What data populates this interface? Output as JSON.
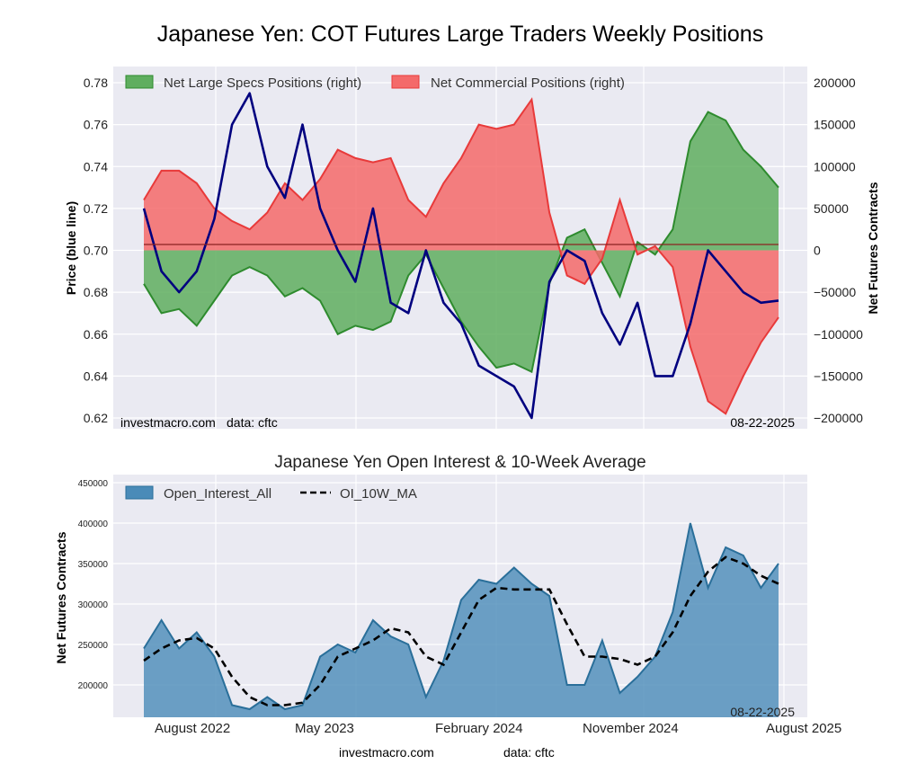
{
  "title": "Japanese Yen: COT Futures Large Traders Weekly Positions",
  "top_panel": {
    "left_ylabel": "Price (blue line)",
    "right_ylabel": "Net Futures Contracts",
    "left_ticks": [
      "0.62",
      "0.64",
      "0.66",
      "0.68",
      "0.70",
      "0.72",
      "0.74",
      "0.76",
      "0.78"
    ],
    "right_ticks": [
      "−200000",
      "−150000",
      "−100000",
      "−50000",
      "0",
      "50000",
      "100000",
      "150000",
      "200000"
    ],
    "watermark": "investmacro.com",
    "data_source": "data: cftc",
    "date_stamp": "08-22-2025"
  },
  "bottom_panel": {
    "title": "Japanese Yen Open Interest & 10-Week Average",
    "ylabel": "Net Futures Contracts",
    "y_ticks": [
      "200000",
      "250000",
      "300000",
      "350000",
      "400000",
      "450000"
    ],
    "x_ticks": [
      "August 2022",
      "May 2023",
      "February 2024",
      "November 2024",
      "August 2025"
    ],
    "date_stamp": "08-22-2025"
  },
  "footer": {
    "site": "investmacro.com",
    "source": "data: cftc"
  },
  "colors": {
    "price_line": "#00007f",
    "specs_fill": "#5fae5f",
    "specs_line": "#2e8b2e",
    "comm_fill": "#f46a6a",
    "comm_line": "#e83a3a",
    "oi_fill": "#4a8bb8",
    "oi_line": "#2a6f9a",
    "plot_bg": "#eaeaf2"
  },
  "chart_data": [
    {
      "type": "area",
      "title": "Japanese Yen: COT Futures Large Traders Weekly Positions",
      "ylabel_left": "Price (blue line)",
      "ylabel_right": "Net Futures Contracts",
      "ylim_left": [
        0.62,
        0.78
      ],
      "ylim_right": [
        -200000,
        200000
      ],
      "x_range": [
        "2022-08-01",
        "2025-08-22"
      ],
      "grid": true,
      "legend_position": "top-left",
      "series": [
        {
          "name": "Net Large Specs Positions (right)",
          "axis": "right",
          "x": [
            "2022-08",
            "2022-09",
            "2022-10",
            "2022-11",
            "2022-12",
            "2023-01",
            "2023-02",
            "2023-03",
            "2023-04",
            "2023-05",
            "2023-06",
            "2023-07",
            "2023-08",
            "2023-09",
            "2023-10",
            "2023-11",
            "2023-12",
            "2024-01",
            "2024-02",
            "2024-03",
            "2024-04",
            "2024-05",
            "2024-06",
            "2024-07",
            "2024-08",
            "2024-09",
            "2024-10",
            "2024-11",
            "2024-12",
            "2025-01",
            "2025-02",
            "2025-03",
            "2025-04",
            "2025-05",
            "2025-06",
            "2025-07",
            "2025-08"
          ],
          "values": [
            -40000,
            -75000,
            -70000,
            -90000,
            -60000,
            -30000,
            -20000,
            -30000,
            -55000,
            -45000,
            -60000,
            -100000,
            -90000,
            -95000,
            -85000,
            -30000,
            -5000,
            -45000,
            -85000,
            -115000,
            -140000,
            -135000,
            -145000,
            -40000,
            15000,
            25000,
            -15000,
            -55000,
            10000,
            -5000,
            25000,
            130000,
            165000,
            155000,
            120000,
            100000,
            75000
          ]
        },
        {
          "name": "Net Commercial Positions (right)",
          "axis": "right",
          "x": [
            "2022-08",
            "2022-09",
            "2022-10",
            "2022-11",
            "2022-12",
            "2023-01",
            "2023-02",
            "2023-03",
            "2023-04",
            "2023-05",
            "2023-06",
            "2023-07",
            "2023-08",
            "2023-09",
            "2023-10",
            "2023-11",
            "2023-12",
            "2024-01",
            "2024-02",
            "2024-03",
            "2024-04",
            "2024-05",
            "2024-06",
            "2024-07",
            "2024-08",
            "2024-09",
            "2024-10",
            "2024-11",
            "2024-12",
            "2025-01",
            "2025-02",
            "2025-03",
            "2025-04",
            "2025-05",
            "2025-06",
            "2025-07",
            "2025-08"
          ],
          "values": [
            60000,
            95000,
            95000,
            80000,
            50000,
            35000,
            25000,
            45000,
            80000,
            60000,
            85000,
            120000,
            110000,
            105000,
            110000,
            60000,
            40000,
            80000,
            110000,
            150000,
            145000,
            150000,
            180000,
            45000,
            -30000,
            -40000,
            -10000,
            60000,
            -5000,
            5000,
            -20000,
            -115000,
            -180000,
            -195000,
            -150000,
            -110000,
            -80000
          ]
        },
        {
          "name": "Price (blue line)",
          "axis": "left",
          "x": [
            "2022-08",
            "2022-09",
            "2022-10",
            "2022-11",
            "2022-12",
            "2023-01",
            "2023-02",
            "2023-03",
            "2023-04",
            "2023-05",
            "2023-06",
            "2023-07",
            "2023-08",
            "2023-09",
            "2023-10",
            "2023-11",
            "2023-12",
            "2024-01",
            "2024-02",
            "2024-03",
            "2024-04",
            "2024-05",
            "2024-06",
            "2024-07",
            "2024-08",
            "2024-09",
            "2024-10",
            "2024-11",
            "2024-12",
            "2025-01",
            "2025-02",
            "2025-03",
            "2025-04",
            "2025-05",
            "2025-06",
            "2025-07",
            "2025-08"
          ],
          "values": [
            0.72,
            0.69,
            0.68,
            0.69,
            0.715,
            0.76,
            0.775,
            0.74,
            0.725,
            0.76,
            0.72,
            0.7,
            0.685,
            0.72,
            0.675,
            0.67,
            0.7,
            0.675,
            0.665,
            0.645,
            0.64,
            0.635,
            0.62,
            0.685,
            0.7,
            0.695,
            0.67,
            0.655,
            0.675,
            0.64,
            0.64,
            0.665,
            0.7,
            0.69,
            0.68,
            0.675,
            0.676
          ]
        }
      ]
    },
    {
      "type": "area",
      "title": "Japanese Yen Open Interest & 10-Week Average",
      "ylabel": "Net Futures Contracts",
      "ylim": [
        160000,
        460000
      ],
      "x_range": [
        "2022-08-01",
        "2025-08-22"
      ],
      "x_tick_labels": [
        "August 2022",
        "May 2023",
        "February 2024",
        "November 2024",
        "August 2025"
      ],
      "grid": true,
      "legend_position": "top-left",
      "series": [
        {
          "name": "Open_Interest_All",
          "x": [
            "2022-08",
            "2022-09",
            "2022-10",
            "2022-11",
            "2022-12",
            "2023-01",
            "2023-02",
            "2023-03",
            "2023-04",
            "2023-05",
            "2023-06",
            "2023-07",
            "2023-08",
            "2023-09",
            "2023-10",
            "2023-11",
            "2023-12",
            "2024-01",
            "2024-02",
            "2024-03",
            "2024-04",
            "2024-05",
            "2024-06",
            "2024-07",
            "2024-08",
            "2024-09",
            "2024-10",
            "2024-11",
            "2024-12",
            "2025-01",
            "2025-02",
            "2025-03",
            "2025-04",
            "2025-05",
            "2025-06",
            "2025-07",
            "2025-08"
          ],
          "values": [
            245000,
            280000,
            245000,
            265000,
            235000,
            175000,
            170000,
            185000,
            170000,
            175000,
            235000,
            250000,
            240000,
            280000,
            260000,
            250000,
            185000,
            230000,
            305000,
            330000,
            325000,
            345000,
            325000,
            310000,
            200000,
            200000,
            255000,
            190000,
            210000,
            235000,
            290000,
            400000,
            320000,
            370000,
            360000,
            320000,
            350000
          ]
        },
        {
          "name": "OI_10W_MA",
          "x": [
            "2022-08",
            "2022-09",
            "2022-10",
            "2022-11",
            "2022-12",
            "2023-01",
            "2023-02",
            "2023-03",
            "2023-04",
            "2023-05",
            "2023-06",
            "2023-07",
            "2023-08",
            "2023-09",
            "2023-10",
            "2023-11",
            "2023-12",
            "2024-01",
            "2024-02",
            "2024-03",
            "2024-04",
            "2024-05",
            "2024-06",
            "2024-07",
            "2024-08",
            "2024-09",
            "2024-10",
            "2024-11",
            "2024-12",
            "2025-01",
            "2025-02",
            "2025-03",
            "2025-04",
            "2025-05",
            "2025-06",
            "2025-07",
            "2025-08"
          ],
          "values": [
            230000,
            245000,
            255000,
            258000,
            245000,
            210000,
            185000,
            175000,
            175000,
            178000,
            200000,
            235000,
            245000,
            255000,
            270000,
            265000,
            235000,
            225000,
            265000,
            305000,
            320000,
            318000,
            318000,
            318000,
            275000,
            235000,
            235000,
            232000,
            225000,
            235000,
            265000,
            310000,
            340000,
            358000,
            350000,
            335000,
            325000
          ]
        }
      ]
    }
  ]
}
